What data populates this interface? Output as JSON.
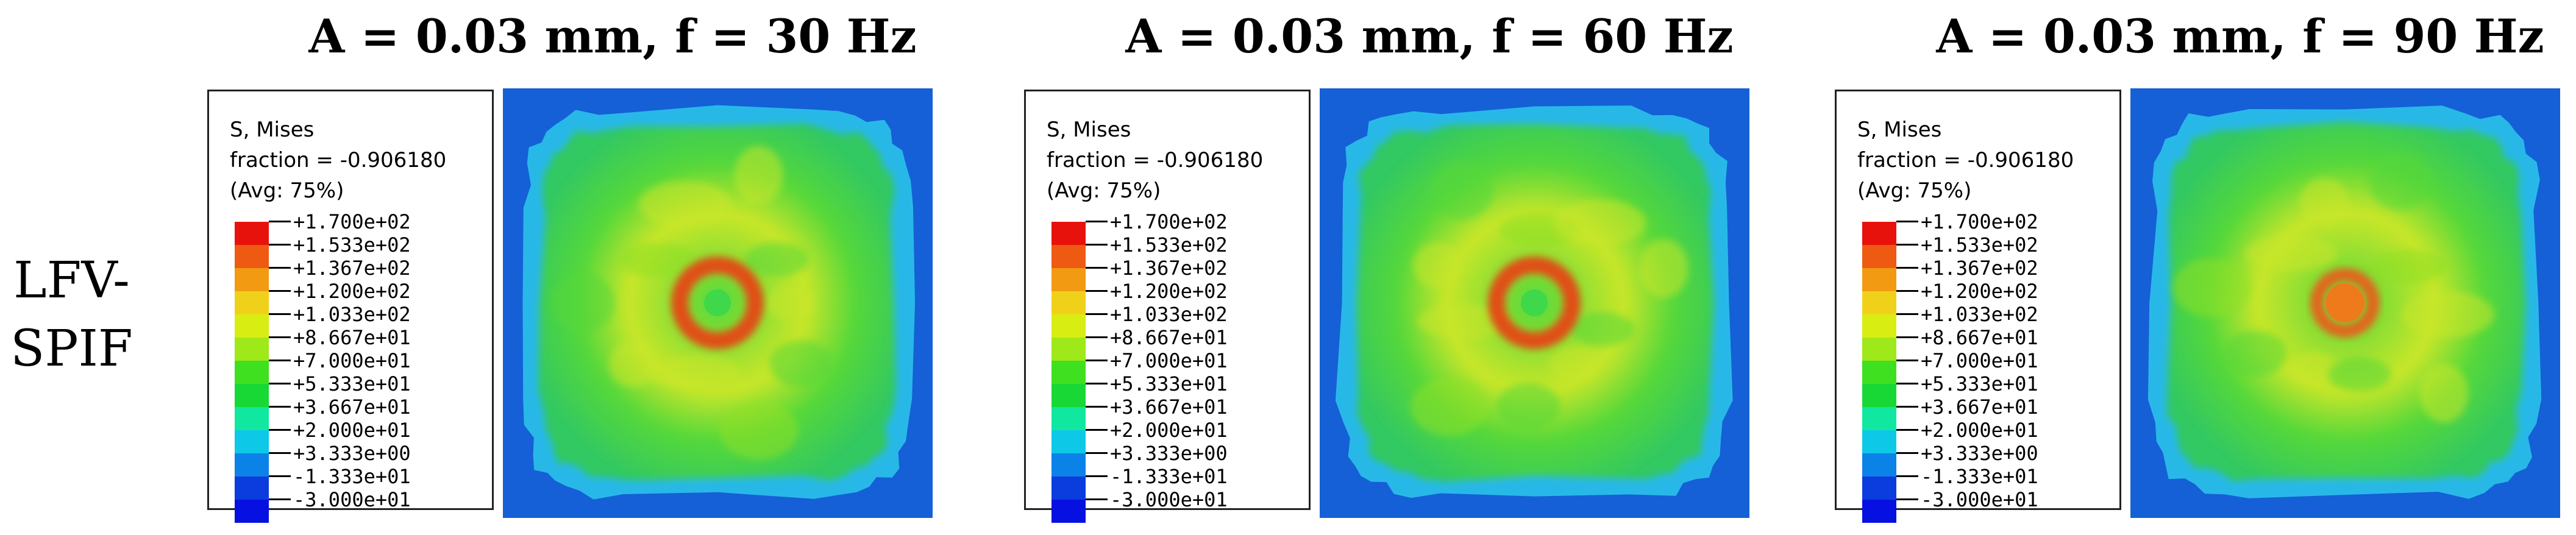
{
  "row_label": [
    "LFV-",
    "SPIF"
  ],
  "legend": {
    "variable": "S, Mises",
    "fraction": "fraction = -0.906180",
    "average": "(Avg: 75%)",
    "values": [
      "+1.700e+02",
      "+1.533e+02",
      "+1.367e+02",
      "+1.200e+02",
      "+1.033e+02",
      "+8.667e+01",
      "+7.000e+01",
      "+5.333e+01",
      "+3.667e+01",
      "+2.000e+01",
      "+3.333e+00",
      "-1.333e+01",
      "-3.000e+01"
    ],
    "colors": [
      "#e8120d",
      "#ef5a12",
      "#f29a12",
      "#f0d11a",
      "#d8ee12",
      "#9fe81a",
      "#3ee020",
      "#18d835",
      "#10e8a0",
      "#0ec8e8",
      "#0a82e8",
      "#0a3cde",
      "#0610e0"
    ]
  },
  "panels": [
    {
      "title": "A = 0.03 mm, f = 30 Hz",
      "hotspot": "high",
      "hotspot_color": "#e05012"
    },
    {
      "title": "A = 0.03 mm, f = 60 Hz",
      "hotspot": "high",
      "hotspot_color": "#e05012"
    },
    {
      "title": "A = 0.03 mm, f = 90 Hz",
      "hotspot": "moderate",
      "hotspot_color": "#e2661a"
    }
  ],
  "colors": {
    "background_field": "#1560d6",
    "edge_cyan": "#28b8e8",
    "body_green": "#56d83a",
    "body_yellow": "#c8e62a"
  }
}
